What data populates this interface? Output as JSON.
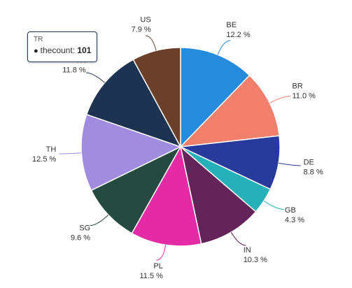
{
  "chart_data": {
    "type": "pie",
    "slices": [
      {
        "label": "BE",
        "percent": 12.2,
        "percent_text": "12.2 %",
        "color": "#258bdb"
      },
      {
        "label": "BR",
        "percent": 11.0,
        "percent_text": "11.0 %",
        "color": "#f07f6b"
      },
      {
        "label": "DE",
        "percent": 8.8,
        "percent_text": "8.8 %",
        "color": "#283a9c"
      },
      {
        "label": "GB",
        "percent": 4.3,
        "percent_text": "4.3 %",
        "color": "#26b1b9"
      },
      {
        "label": "IN",
        "percent": 10.3,
        "percent_text": "10.3 %",
        "color": "#64245a"
      },
      {
        "label": "PL",
        "percent": 11.5,
        "percent_text": "11.5 %",
        "color": "#e52aa5"
      },
      {
        "label": "SG",
        "percent": 9.6,
        "percent_text": "9.6 %",
        "color": "#254b40"
      },
      {
        "label": "TH",
        "percent": 12.5,
        "percent_text": "12.5 %",
        "color": "#a08ddf"
      },
      {
        "label": "TR",
        "percent": 11.8,
        "percent_text": "11.8 %",
        "color": "#1e3252"
      },
      {
        "label": "US",
        "percent": 7.9,
        "percent_text": "7.9 %",
        "color": "#6a402a"
      }
    ]
  },
  "tooltip": {
    "title": "TR",
    "series_name": "thecount",
    "value": "101",
    "marker": "●"
  }
}
